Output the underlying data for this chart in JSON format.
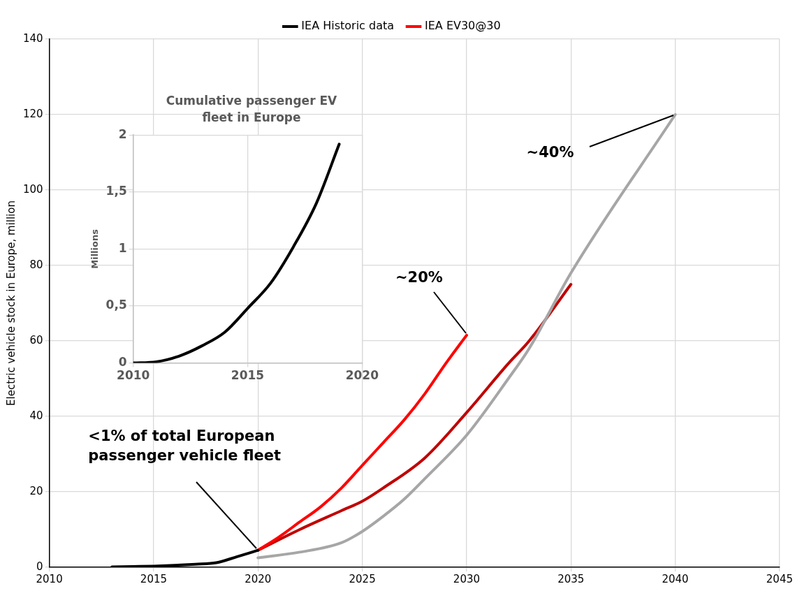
{
  "chart_data": [
    {
      "type": "line",
      "ylabel": "Electric vehicle stock in Europe, million",
      "xlim": [
        2010,
        2045
      ],
      "xticks": [
        2010,
        2015,
        2020,
        2025,
        2030,
        2035,
        2040,
        2045
      ],
      "ylim": [
        0,
        140
      ],
      "yticks": [
        0,
        20,
        40,
        60,
        80,
        100,
        120,
        140
      ],
      "grid": true,
      "legend": "top",
      "marker": "none",
      "series": [
        {
          "name": "IEA Historic data",
          "color": "#000000",
          "x": [
            2013,
            2014,
            2015,
            2016,
            2017,
            2018,
            2019,
            2020
          ],
          "values": [
            0.1,
            0.2,
            0.3,
            0.5,
            0.8,
            1.2,
            2.8,
            4.5
          ]
        },
        {
          "name": "IEA EV30@30",
          "color": "#ff0000",
          "x": [
            2020,
            2021,
            2022,
            2023,
            2024,
            2025,
            2026,
            2027,
            2028,
            2029,
            2030
          ],
          "values": [
            4.5,
            8,
            12,
            16,
            21,
            27,
            33,
            39,
            46,
            54,
            61.5
          ]
        },
        {
          "color": "#a6a6a6",
          "x": [
            2020,
            2022,
            2024,
            2025,
            2026,
            2027,
            2028,
            2030,
            2032,
            2033,
            2035,
            2040
          ],
          "values": [
            2.5,
            4,
            6.5,
            9.5,
            13.5,
            18,
            23.5,
            35,
            50,
            58,
            78,
            120
          ]
        },
        {
          "color": "#c00000",
          "x": [
            2020,
            2022,
            2024,
            2025,
            2026,
            2028,
            2030,
            2032,
            2033,
            2035
          ],
          "values": [
            4.5,
            10,
            15,
            17.5,
            21,
            29,
            41,
            54,
            60,
            75
          ]
        }
      ],
      "annotations": [
        {
          "text": "<1% of total European passenger vehicle fleet",
          "x": 2020,
          "y": 4.5
        },
        {
          "text": "~20%",
          "x": 2030,
          "y": 61.5
        },
        {
          "text": "~40%",
          "x": 2040,
          "y": 120
        }
      ]
    },
    {
      "type": "line",
      "title": "Cumulative passenger EV fleet in Europe",
      "ylabel": "Millions",
      "xlim": [
        2010,
        2020
      ],
      "xticks": [
        2010,
        2015,
        2020
      ],
      "ylim": [
        0,
        2
      ],
      "yticks": [
        0,
        {
          "value": 0.5,
          "label": "0,5"
        },
        1,
        {
          "value": 1.5,
          "label": "1,5"
        },
        2
      ],
      "grid": true,
      "marker": "none",
      "series": [
        {
          "color": "#000000",
          "x": [
            2010,
            2011,
            2012,
            2013,
            2014,
            2015,
            2016,
            2017,
            2018,
            2019
          ],
          "values": [
            0,
            0.01,
            0.06,
            0.15,
            0.27,
            0.48,
            0.7,
            1.02,
            1.4,
            1.92
          ]
        }
      ]
    }
  ]
}
